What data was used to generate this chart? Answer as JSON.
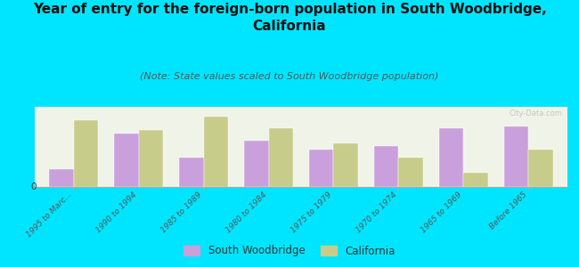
{
  "title": "Year of entry for the foreign-born population in South Woodbridge,\nCalifornia",
  "subtitle": "(Note: State values scaled to South Woodbridge population)",
  "categories": [
    "1995 to Marc...",
    "1990 to 1994",
    "1985 to 1989",
    "1980 to 1984",
    "1975 to 1979",
    "1970 to 1974",
    "1965 to 1969",
    "Before 1965"
  ],
  "south_woodbridge": [
    18,
    55,
    30,
    47,
    38,
    42,
    60,
    62
  ],
  "california": [
    68,
    58,
    72,
    60,
    45,
    30,
    15,
    38
  ],
  "bar_color_sw": "#c9a0dc",
  "bar_color_ca": "#c8cc8a",
  "background_color": "#00e5ff",
  "chart_bg_color": "#f0f4e8",
  "title_fontsize": 11,
  "subtitle_fontsize": 8,
  "legend_label_sw": "South Woodbridge",
  "legend_label_ca": "California",
  "watermark": "City-Data.com"
}
